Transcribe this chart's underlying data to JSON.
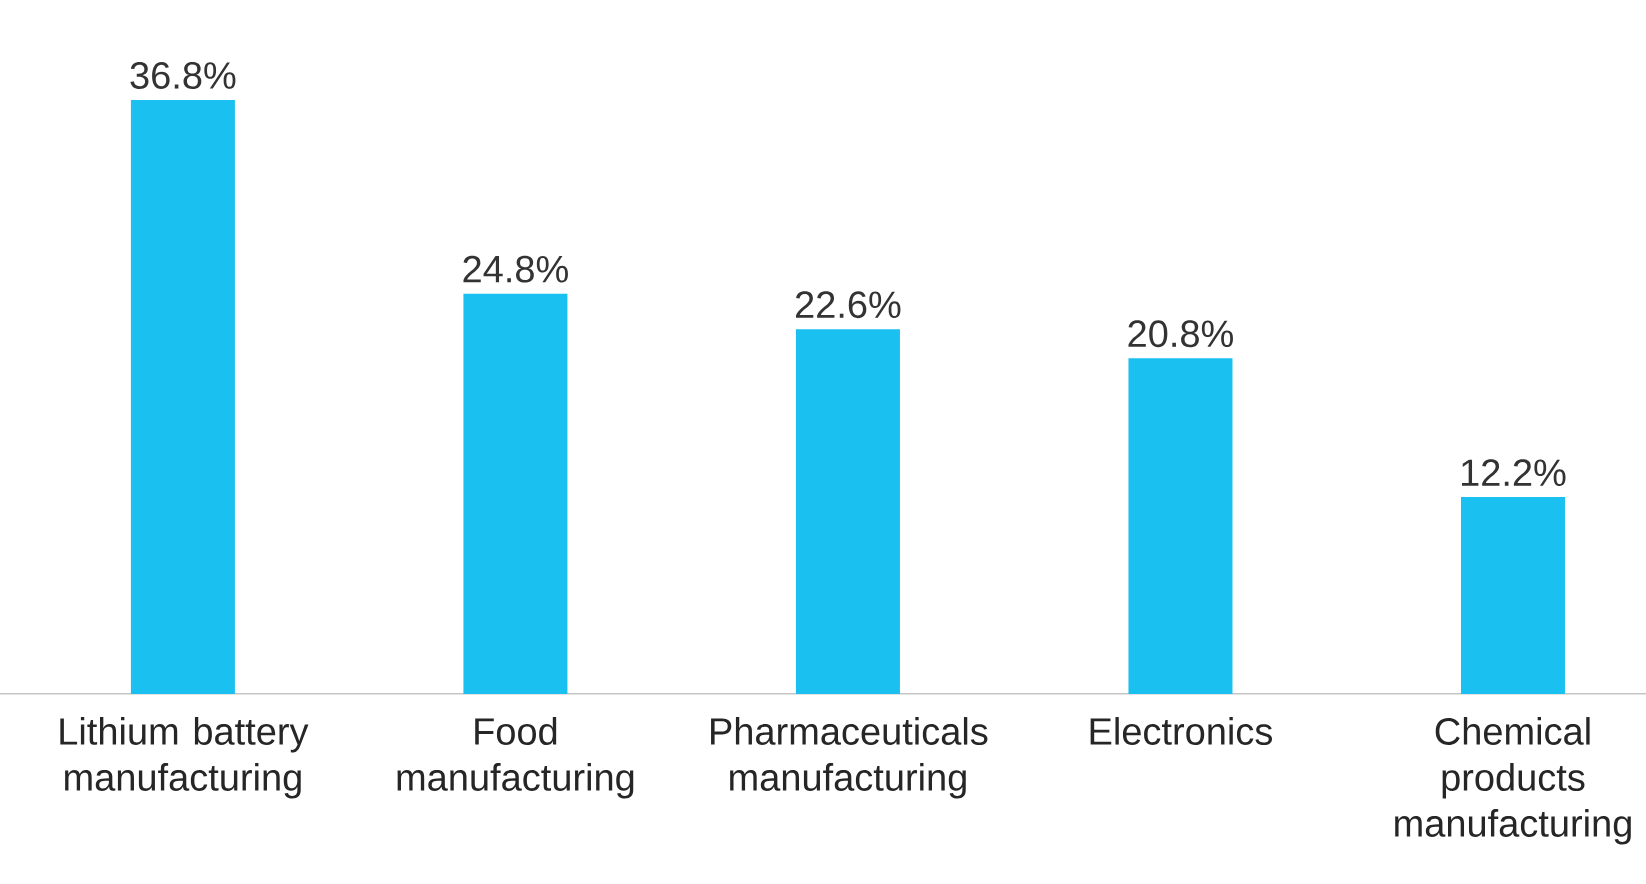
{
  "chart_data": {
    "type": "bar",
    "categories": [
      "Lithium battery manufacturing",
      "Food manufacturing",
      "Pharmaceuticals manufacturing",
      "Electronics",
      "Chemical products manufacturing"
    ],
    "values": [
      36.8,
      24.8,
      22.6,
      20.8,
      12.2
    ],
    "value_labels": [
      "36.8%",
      "24.8%",
      "22.6%",
      "20.8%",
      "12.2%"
    ],
    "color": "#1ac0f0"
  }
}
